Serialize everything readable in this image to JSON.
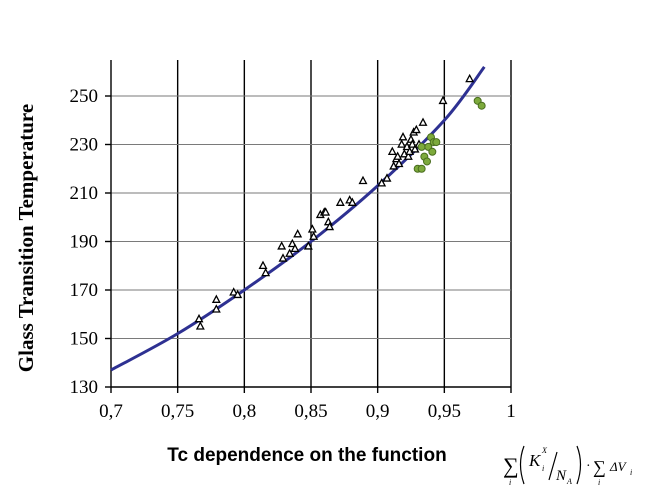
{
  "chart_data": {
    "type": "scatter",
    "xlabel": "Tc dependence on the function",
    "ylabel": "Glass Transition  Temperature",
    "xlim": [
      0.7,
      1
    ],
    "ylim": [
      130,
      265
    ],
    "x_ticks": [
      "0,7",
      "0,75",
      "0,8",
      "0,85",
      "0,9",
      "0,95",
      "1"
    ],
    "y_ticks": [
      "130",
      "150",
      "170",
      "190",
      "210",
      "230",
      "250"
    ],
    "grid": "vertical and horizontal",
    "formula": {
      "sum1": "∑",
      "index": "i",
      "K": "K",
      "K_sup": "X",
      "K_sub": "i",
      "N": "N",
      "N_sub": "A",
      "dot": "·",
      "sum2": "∑",
      "dV": "ΔV",
      "dV_sub": "i"
    },
    "series": [
      {
        "marker": "open-triangle",
        "color": "#000000",
        "points": [
          [
            0.766,
            158
          ],
          [
            0.767,
            155
          ],
          [
            0.779,
            166
          ],
          [
            0.779,
            162
          ],
          [
            0.792,
            169
          ],
          [
            0.795,
            168
          ],
          [
            0.814,
            180
          ],
          [
            0.816,
            177
          ],
          [
            0.828,
            188
          ],
          [
            0.829,
            183
          ],
          [
            0.834,
            185
          ],
          [
            0.836,
            189
          ],
          [
            0.838,
            187
          ],
          [
            0.84,
            193
          ],
          [
            0.848,
            188
          ],
          [
            0.851,
            195
          ],
          [
            0.852,
            192
          ],
          [
            0.857,
            201
          ],
          [
            0.86,
            202
          ],
          [
            0.861,
            202
          ],
          [
            0.863,
            198
          ],
          [
            0.864,
            196
          ],
          [
            0.872,
            206
          ],
          [
            0.879,
            207
          ],
          [
            0.881,
            206
          ],
          [
            0.889,
            215
          ],
          [
            0.903,
            214
          ],
          [
            0.907,
            216
          ],
          [
            0.911,
            227
          ],
          [
            0.912,
            221
          ],
          [
            0.914,
            224
          ],
          [
            0.915,
            225
          ],
          [
            0.916,
            222
          ],
          [
            0.918,
            230
          ],
          [
            0.919,
            233
          ],
          [
            0.92,
            226
          ],
          [
            0.922,
            229
          ],
          [
            0.923,
            225
          ],
          [
            0.924,
            227
          ],
          [
            0.925,
            232
          ],
          [
            0.926,
            230
          ],
          [
            0.927,
            235
          ],
          [
            0.928,
            228
          ],
          [
            0.929,
            236
          ],
          [
            0.931,
            230
          ],
          [
            0.934,
            239
          ],
          [
            0.949,
            248
          ],
          [
            0.969,
            257
          ]
        ]
      },
      {
        "marker": "filled-circle",
        "color": "#7daa3c",
        "points": [
          [
            0.93,
            220
          ],
          [
            0.933,
            220
          ],
          [
            0.933,
            229
          ],
          [
            0.935,
            225
          ],
          [
            0.937,
            223
          ],
          [
            0.938,
            229
          ],
          [
            0.94,
            233
          ],
          [
            0.941,
            227
          ],
          [
            0.942,
            231
          ],
          [
            0.944,
            231
          ],
          [
            0.975,
            248
          ],
          [
            0.978,
            246
          ]
        ]
      },
      {
        "marker": "line",
        "color": "#2e3192",
        "points": [
          [
            0.7,
            137
          ],
          [
            0.75,
            152
          ],
          [
            0.8,
            170
          ],
          [
            0.85,
            190
          ],
          [
            0.9,
            213
          ],
          [
            0.95,
            240
          ],
          [
            0.98,
            262
          ]
        ]
      }
    ]
  }
}
